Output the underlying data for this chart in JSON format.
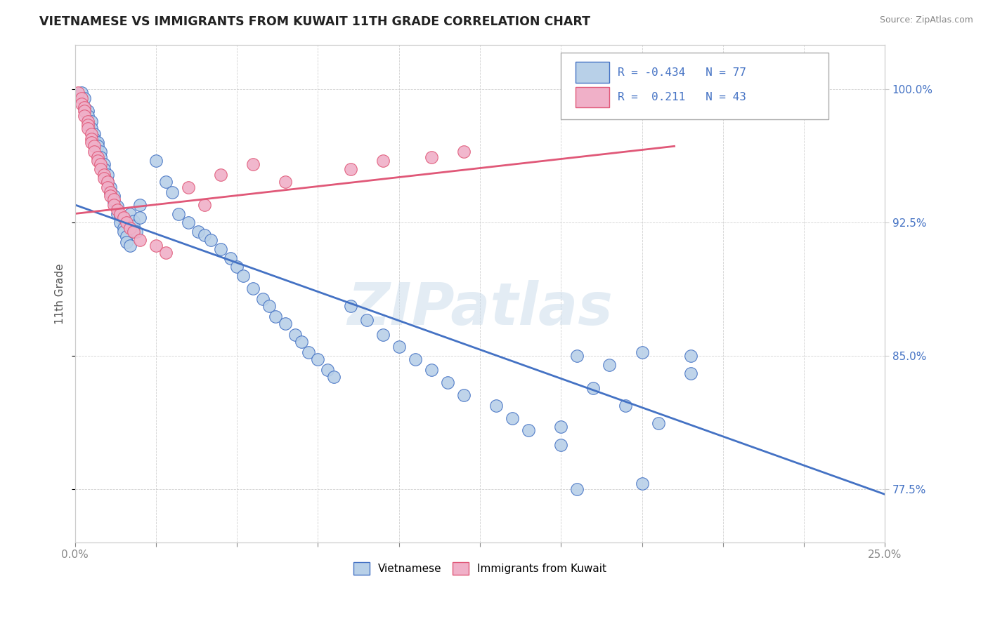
{
  "title": "VIETNAMESE VS IMMIGRANTS FROM KUWAIT 11TH GRADE CORRELATION CHART",
  "source": "Source: ZipAtlas.com",
  "ylabel": "11th Grade",
  "ylabel_ticks": [
    "77.5%",
    "85.0%",
    "92.5%",
    "100.0%"
  ],
  "ylabel_values": [
    0.775,
    0.85,
    0.925,
    1.0
  ],
  "xmin": 0.0,
  "xmax": 0.25,
  "ymin": 0.745,
  "ymax": 1.025,
  "r_vietnamese": -0.434,
  "n_vietnamese": 77,
  "r_kuwait": 0.211,
  "n_kuwait": 43,
  "color_vietnamese": "#b8d0e8",
  "color_kuwait": "#f0b0c8",
  "color_vietnamese_line": "#4472c4",
  "color_kuwait_line": "#e05878",
  "watermark": "ZIPatlas",
  "viet_trendline_x": [
    0.0,
    0.25
  ],
  "viet_trendline_y": [
    0.935,
    0.772
  ],
  "kuwait_trendline_x": [
    0.0,
    0.185
  ],
  "kuwait_trendline_y": [
    0.93,
    0.968
  ]
}
